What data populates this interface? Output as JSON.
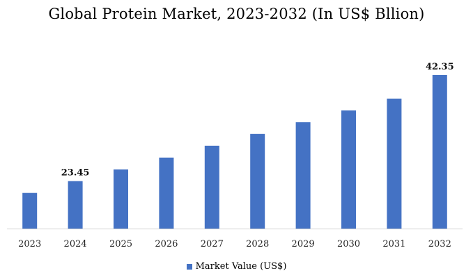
{
  "chart_data": {
    "type": "bar",
    "title": "Global Protein Market, 2023-2032 (In US$ Bllion)",
    "xlabel": "",
    "ylabel": "",
    "categories": [
      "2023",
      "2024",
      "2025",
      "2026",
      "2027",
      "2028",
      "2029",
      "2030",
      "2031",
      "2032"
    ],
    "series": [
      {
        "name": "Market Value (US$)",
        "values": [
          21.35,
          23.45,
          25.55,
          27.65,
          29.75,
          31.85,
          33.95,
          36.05,
          38.15,
          42.35
        ],
        "color": "#4472C4"
      }
    ],
    "data_labels": [
      {
        "category": "2024",
        "text": "23.45"
      },
      {
        "category": "2032",
        "text": "42.35"
      }
    ],
    "ylim": [
      15.0,
      42.35
    ],
    "grid": false,
    "legend_position": "bottom"
  }
}
